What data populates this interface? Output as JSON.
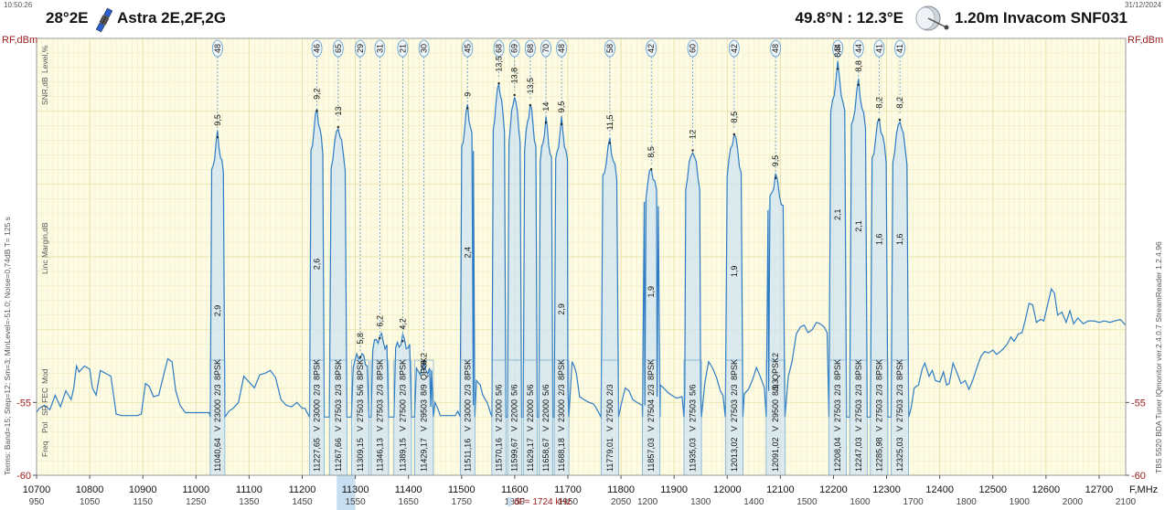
{
  "header": {
    "time": "10:50:26",
    "date": "31/12/2024",
    "orbital": "28°2E",
    "satellite": "Astra 2E,2F,2G",
    "location": "49.8°N : 12.3°E",
    "antenna": "1.20m  Invacom SNF031"
  },
  "axes": {
    "left_unit": "RF,dBm",
    "right_unit": "RF,dBm",
    "x_unit": "F,MHz",
    "left_labels": [
      "Level,%",
      "SNR,dB",
      "Linc Margin,dB",
      "Mod",
      "SR FEC",
      "Pol",
      "Freq"
    ],
    "left_info": "Terms:  Band=15; Step=12; Sm=3; MinLevel=-51.0; Noise=0,74dB   T= 125 s",
    "right_info": "TBS 5520 BDA Tuner   IQmonitor  ver.2.4.0.7   StreamReader 1.2.4.96",
    "df": "dF= 1724 kHz"
  },
  "colors": {
    "trace": "#2e7cc4",
    "fill": "#cfe4f2",
    "plot_bg": "#fdfbe3",
    "grid": "#e4dfa5",
    "axis_red": "#9a1b1b",
    "highlight": "#c7def0"
  },
  "chart_data": {
    "type": "line",
    "xlim": [
      10700,
      12750
    ],
    "ylim": [
      -60,
      -30
    ],
    "x_ticks": [
      10700,
      10800,
      10900,
      11000,
      11100,
      11200,
      11300,
      11400,
      11500,
      11600,
      11700,
      11800,
      11900,
      12000,
      12100,
      12200,
      12300,
      12400,
      12500,
      12600,
      12700
    ],
    "if_ticks": [
      950,
      1050,
      1150,
      1250,
      1350,
      1450,
      1550,
      1650,
      1750,
      1850,
      1950,
      2050,
      1200,
      1300,
      1400,
      1500,
      1600,
      1700,
      1800,
      1900,
      2000,
      2100
    ],
    "y_ticks": [
      {
        "value": -55,
        "label": "-55"
      },
      {
        "value": -60,
        "label": "-60"
      }
    ],
    "noise_floor": [
      [
        10700,
        -55.7
      ],
      [
        10705,
        -55.4
      ],
      [
        10715,
        -55.2
      ],
      [
        10725,
        -55.5
      ],
      [
        10735,
        -54.5
      ],
      [
        10745,
        -55.3
      ],
      [
        10755,
        -54.2
      ],
      [
        10765,
        -54.8
      ],
      [
        10770,
        -54.0
      ],
      [
        10775,
        -52.5
      ],
      [
        10780,
        -52.9
      ],
      [
        10790,
        -52.5
      ],
      [
        10800,
        -52.7
      ],
      [
        10805,
        -54.0
      ],
      [
        10812,
        -54.5
      ],
      [
        10820,
        -52.8
      ],
      [
        10830,
        -53.0
      ],
      [
        10840,
        -53.2
      ],
      [
        10850,
        -55.8
      ],
      [
        10860,
        -55.9
      ],
      [
        10870,
        -55.9
      ],
      [
        10880,
        -55.9
      ],
      [
        10890,
        -55.9
      ],
      [
        10897,
        -55.8
      ],
      [
        10905,
        -53.7
      ],
      [
        10912,
        -53.9
      ],
      [
        10920,
        -54.6
      ],
      [
        10930,
        -54.5
      ],
      [
        10940,
        -53.0
      ],
      [
        10947,
        -52.0
      ],
      [
        10955,
        -52.2
      ],
      [
        10962,
        -54.2
      ],
      [
        10970,
        -55.2
      ],
      [
        10980,
        -55.7
      ],
      [
        10990,
        -55.7
      ],
      [
        11000,
        -55.7
      ],
      [
        11010,
        -55.7
      ],
      [
        11020,
        -55.7
      ],
      [
        11025,
        -55.7
      ],
      [
        11062,
        -55.6
      ],
      [
        11070,
        -55.4
      ],
      [
        11080,
        -55.0
      ],
      [
        11090,
        -53.2
      ],
      [
        11100,
        -53.6
      ],
      [
        11110,
        -54.0
      ],
      [
        11120,
        -53.1
      ],
      [
        11130,
        -53.0
      ],
      [
        11140,
        -52.8
      ],
      [
        11150,
        -53.3
      ],
      [
        11160,
        -54.8
      ],
      [
        11170,
        -55.2
      ],
      [
        11180,
        -55.3
      ],
      [
        11190,
        -55.0
      ],
      [
        11200,
        -55.4
      ],
      [
        11205,
        -55.4
      ],
      [
        11442,
        -55.3
      ],
      [
        11450,
        -55.0
      ],
      [
        11455,
        -55.4
      ],
      [
        11460,
        -55.9
      ],
      [
        11475,
        -55.9
      ],
      [
        11488,
        -55.9
      ],
      [
        11493,
        -55.6
      ],
      [
        11522,
        -55.2
      ],
      [
        11528,
        -53.5
      ],
      [
        11535,
        -53.8
      ],
      [
        11540,
        -54.5
      ],
      [
        11548,
        -55.0
      ],
      [
        11700,
        -54.0
      ],
      [
        11708,
        -52.2
      ],
      [
        11712,
        -52.5
      ],
      [
        11716,
        -53.0
      ],
      [
        11722,
        -54.6
      ],
      [
        11730,
        -54.8
      ],
      [
        11740,
        -55.0
      ],
      [
        11748,
        -55.1
      ],
      [
        11752,
        -55.3
      ],
      [
        11800,
        -55.2
      ],
      [
        11808,
        -54.0
      ],
      [
        11815,
        -54.2
      ],
      [
        11822,
        -54.8
      ],
      [
        11830,
        -55.0
      ],
      [
        11840,
        -55.2
      ],
      [
        11845,
        -55.2
      ],
      [
        11868,
        -54.6
      ],
      [
        11874,
        -53.8
      ],
      [
        11880,
        -54.0
      ],
      [
        11888,
        -54.3
      ],
      [
        11895,
        -54.5
      ],
      [
        11900,
        -54.6
      ],
      [
        11905,
        -54.7
      ],
      [
        11915,
        -54.6
      ],
      [
        11920,
        -54.5
      ],
      [
        11950,
        -54.6
      ],
      [
        11958,
        -53.6
      ],
      [
        11965,
        -52.2
      ],
      [
        11972,
        -52.6
      ],
      [
        11980,
        -53.3
      ],
      [
        11987,
        -54.2
      ],
      [
        11992,
        -54.5
      ],
      [
        12032,
        -54.4
      ],
      [
        12040,
        -54.1
      ],
      [
        12048,
        -53.4
      ],
      [
        12055,
        -52.6
      ],
      [
        12062,
        -53.2
      ],
      [
        12070,
        -54.0
      ],
      [
        12078,
        -54.2
      ],
      [
        12108,
        -54.0
      ],
      [
        12115,
        -53.2
      ],
      [
        12122,
        -52.2
      ],
      [
        12130,
        -50.3
      ],
      [
        12138,
        -49.8
      ],
      [
        12145,
        -49.7
      ],
      [
        12152,
        -50.2
      ],
      [
        12160,
        -50.0
      ],
      [
        12168,
        -49.5
      ],
      [
        12175,
        -49.6
      ],
      [
        12182,
        -49.8
      ],
      [
        12188,
        -50.2
      ],
      [
        12346,
        -55.4
      ],
      [
        12352,
        -54.0
      ],
      [
        12360,
        -53.8
      ],
      [
        12367,
        -52.7
      ],
      [
        12372,
        -52.3
      ],
      [
        12380,
        -53.2
      ],
      [
        12386,
        -52.8
      ],
      [
        12392,
        -53.5
      ],
      [
        12400,
        -53.6
      ],
      [
        12407,
        -52.9
      ],
      [
        12413,
        -53.8
      ],
      [
        12418,
        -53.7
      ],
      [
        12425,
        -52.3
      ],
      [
        12432,
        -52.9
      ],
      [
        12440,
        -53.7
      ],
      [
        12448,
        -53.5
      ],
      [
        12455,
        -54.1
      ],
      [
        12462,
        -53.5
      ],
      [
        12470,
        -52.6
      ],
      [
        12478,
        -51.8
      ],
      [
        12485,
        -51.5
      ],
      [
        12492,
        -51.6
      ],
      [
        12500,
        -51.4
      ],
      [
        12507,
        -51.7
      ],
      [
        12514,
        -51.5
      ],
      [
        12520,
        -51.3
      ],
      [
        12527,
        -51.0
      ],
      [
        12534,
        -50.5
      ],
      [
        12540,
        -50.8
      ],
      [
        12548,
        -50.3
      ],
      [
        12555,
        -50.2
      ],
      [
        12562,
        -49.2
      ],
      [
        12568,
        -48.2
      ],
      [
        12575,
        -48.3
      ],
      [
        12582,
        -49.5
      ],
      [
        12590,
        -49.3
      ],
      [
        12596,
        -49.4
      ],
      [
        12603,
        -48.3
      ],
      [
        12610,
        -47.2
      ],
      [
        12616,
        -47.5
      ],
      [
        12622,
        -49.0
      ],
      [
        12630,
        -48.8
      ],
      [
        12638,
        -49.5
      ],
      [
        12645,
        -48.7
      ],
      [
        12652,
        -49.6
      ],
      [
        12660,
        -49.2
      ],
      [
        12670,
        -49.6
      ],
      [
        12680,
        -49.4
      ],
      [
        12690,
        -49.4
      ],
      [
        12700,
        -49.5
      ],
      [
        12710,
        -49.4
      ],
      [
        12720,
        -49.5
      ],
      [
        12730,
        -49.4
      ],
      [
        12740,
        -49.3
      ],
      [
        12750,
        -49.7
      ]
    ],
    "transponders": [
      {
        "freq": 11040.64,
        "freq_label": "11040,64",
        "pol": "V",
        "sr": "23000",
        "fec": "2/3",
        "mod": "8PSK",
        "level": "48",
        "snr": "9,5",
        "lm": "2,9",
        "peak": -36.6,
        "width": 23000,
        "snr_y": -36.0,
        "lm_y": -48.7
      },
      {
        "freq": 11227.65,
        "freq_label": "11227,65",
        "pol": "V",
        "sr": "23000",
        "fec": "2/3",
        "mod": "8PSK",
        "level": "46",
        "snr": "9,2",
        "lm": "2,6",
        "peak": -34.8,
        "width": 23000,
        "snr_y": -34.2,
        "lm_y": -45.5
      },
      {
        "freq": 11267.66,
        "freq_label": "11267,66",
        "pol": "V",
        "sr": "27503",
        "fec": "2/3",
        "mod": "8PSK",
        "level": "65",
        "snr": "13",
        "lm": "",
        "peak": -35.9,
        "width": 27503,
        "snr_y": -35.3,
        "lm_y": 0
      },
      {
        "freq": 11309.15,
        "freq_label": "11309,15",
        "pol": "V",
        "sr": "27503",
        "fec": "5/6",
        "mod": "8PSK",
        "level": "29",
        "snr": "5,8",
        "lm": "",
        "peak": -51.7,
        "width": 27503,
        "snr_y": -51.0,
        "lm_y": 0
      },
      {
        "freq": 11346.13,
        "freq_label": "11346,13",
        "pol": "V",
        "sr": "27503",
        "fec": "2/3",
        "mod": "8PSK",
        "level": "31",
        "snr": "6,2",
        "lm": "",
        "peak": -50.4,
        "width": 27503,
        "snr_y": -49.8,
        "lm_y": 0
      },
      {
        "freq": 11389.15,
        "freq_label": "11389,15",
        "pol": "V",
        "sr": "27500",
        "fec": "2/3",
        "mod": "8PSK",
        "level": "21",
        "snr": "4,2",
        "lm": "",
        "peak": -50.6,
        "width": 27500,
        "snr_y": -50.0,
        "lm_y": 0
      },
      {
        "freq": 11429.17,
        "freq_label": "11429,17",
        "pol": "V",
        "sr": "29503",
        "fec": "8/9",
        "mod": "QPSK2",
        "level": "30",
        "snr": "6",
        "lm": "",
        "peak": -52.5,
        "width": 29503,
        "snr_y": -52.4,
        "lm_y": 0
      },
      {
        "freq": 11511.16,
        "freq_label": "11511,16",
        "pol": "V",
        "sr": "23000",
        "fec": "2/3",
        "mod": "8PSK",
        "level": "45",
        "snr": "9",
        "lm": "2,4",
        "peak": -34.6,
        "width": 23000,
        "snr_y": -34.0,
        "lm_y": -44.7
      },
      {
        "freq": 11570.16,
        "freq_label": "11570,16",
        "pol": "V",
        "sr": "22000",
        "fec": "5/6",
        "mod": "",
        "level": "68",
        "snr": "13,5",
        "lm": "",
        "peak": -32.9,
        "width": 22000,
        "snr_y": -32.3,
        "lm_y": 0
      },
      {
        "freq": 11599.67,
        "freq_label": "11599,67",
        "pol": "V",
        "sr": "22000",
        "fec": "5/6",
        "mod": "",
        "level": "69",
        "snr": "13,8",
        "lm": "",
        "peak": -33.7,
        "width": 22000,
        "snr_y": -33.1,
        "lm_y": 0
      },
      {
        "freq": 11629.17,
        "freq_label": "11629,17",
        "pol": "V",
        "sr": "22000",
        "fec": "5/6",
        "mod": "",
        "level": "68",
        "snr": "13,5",
        "lm": "",
        "peak": -34.4,
        "width": 22000,
        "snr_y": -33.8,
        "lm_y": 0
      },
      {
        "freq": 11658.67,
        "freq_label": "11658,67",
        "pol": "V",
        "sr": "22000",
        "fec": "5/6",
        "mod": "",
        "level": "70",
        "snr": "14",
        "lm": "",
        "peak": -35.6,
        "width": 22000,
        "snr_y": -35.0,
        "lm_y": 0
      },
      {
        "freq": 11688.18,
        "freq_label": "11688,18",
        "pol": "V",
        "sr": "23000",
        "fec": "2/3",
        "mod": "8PSK",
        "level": "48",
        "snr": "9,5",
        "lm": "2,9",
        "peak": -35.7,
        "width": 23000,
        "snr_y": -35.1,
        "lm_y": -48.6
      },
      {
        "freq": 11779.01,
        "freq_label": "11779,01",
        "pol": "V",
        "sr": "27500",
        "fec": "2/3",
        "mod": "",
        "level": "58",
        "snr": "11,5",
        "lm": "",
        "peak": -37.0,
        "width": 27500,
        "snr_y": -36.3,
        "lm_y": 0
      },
      {
        "freq": 11857.03,
        "freq_label": "11857,03",
        "pol": "V",
        "sr": "27504",
        "fec": "2/3",
        "mod": "8PSK",
        "level": "42",
        "snr": "8,5",
        "lm": "1,9",
        "peak": -38.8,
        "width": 27504,
        "snr_y": -38.2,
        "lm_y": -47.4
      },
      {
        "freq": 11935.03,
        "freq_label": "11935,03",
        "pol": "V",
        "sr": "27503",
        "fec": "5/6",
        "mod": "",
        "level": "60",
        "snr": "12",
        "lm": "",
        "peak": -37.5,
        "width": 27503,
        "snr_y": -36.9,
        "lm_y": 0
      },
      {
        "freq": 12013.02,
        "freq_label": "12013,02",
        "pol": "V",
        "sr": "27503",
        "fec": "2/3",
        "mod": "8PSK",
        "level": "42",
        "snr": "8,5",
        "lm": "1,9",
        "peak": -36.4,
        "width": 27503,
        "snr_y": -35.8,
        "lm_y": -46.0
      },
      {
        "freq": 12091.02,
        "freq_label": "12091,02",
        "pol": "V",
        "sr": "29500",
        "fec": "8/9",
        "mod": "QPSK2",
        "level": "48",
        "snr": "9,5",
        "lm": "3,3",
        "peak": -39.4,
        "width": 29500,
        "snr_y": -38.8,
        "lm_y": -53.8
      },
      {
        "freq": 12208.04,
        "freq_label": "12208,04",
        "pol": "V",
        "sr": "27503",
        "fec": "2/3",
        "mod": "8PSK",
        "level": "44",
        "snr": "8,8",
        "lm": "2,1",
        "peak": -31.9,
        "width": 27503,
        "snr_y": -31.3,
        "lm_y": -42.1
      },
      {
        "freq": 12247.03,
        "freq_label": "12247,03",
        "pol": "V",
        "sr": "27503",
        "fec": "2/3",
        "mod": "8PSK",
        "level": "44",
        "snr": "8,8",
        "lm": "2,1",
        "peak": -33.0,
        "width": 27503,
        "snr_y": -32.3,
        "lm_y": -42.9
      },
      {
        "freq": 12285.98,
        "freq_label": "12285,98",
        "pol": "V",
        "sr": "27503",
        "fec": "2/3",
        "mod": "8PSK",
        "level": "41",
        "snr": "8,2",
        "lm": "1,6",
        "peak": -35.4,
        "width": 27503,
        "snr_y": -34.8,
        "lm_y": -43.8
      },
      {
        "freq": 12325.03,
        "freq_label": "12325,03",
        "pol": "V",
        "sr": "27503",
        "fec": "2/3",
        "mod": "8PSK",
        "level": "41",
        "snr": "8,2",
        "lm": "1,6",
        "peak": -35.4,
        "width": 27503,
        "snr_y": -34.8,
        "lm_y": -43.8
      }
    ],
    "highlight_range": [
      11265,
      11300
    ],
    "df_marker_x": 11590
  }
}
